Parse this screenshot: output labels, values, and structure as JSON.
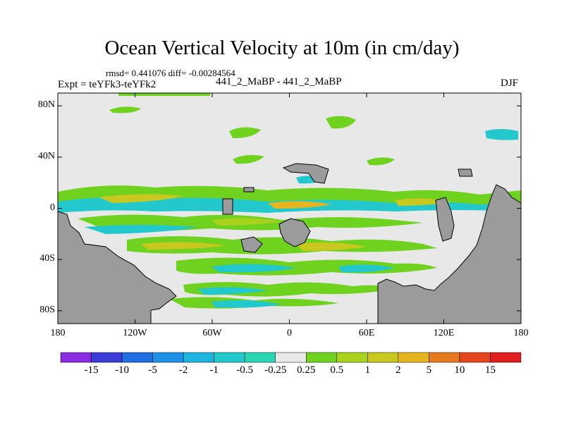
{
  "title": "Ocean Vertical Velocity at 10m (in cm/day)",
  "stats": "rmsd= 0.441076 diff= -0.00284564",
  "experiment_label": "Expt = teYFk3-teYFk2",
  "experiment_name": "441_2_MaBP - 441_2_MaBP",
  "season": "DJF",
  "colors": {
    "land": "#9b9b9b",
    "ocean_background": "#e8e8e8"
  },
  "map": {
    "y_ticks": [
      {
        "label": "80N",
        "lat": 80
      },
      {
        "label": "40N",
        "lat": 40
      },
      {
        "label": "0",
        "lat": 0
      },
      {
        "label": "40S",
        "lat": -40
      },
      {
        "label": "80S",
        "lat": -80
      }
    ],
    "x_ticks": [
      {
        "label": "180",
        "lon": -180
      },
      {
        "label": "120W",
        "lon": -120
      },
      {
        "label": "60W",
        "lon": -60
      },
      {
        "label": "0",
        "lon": 0
      },
      {
        "label": "60E",
        "lon": 60
      },
      {
        "label": "120E",
        "lon": 120
      },
      {
        "label": "180",
        "lon": 180
      }
    ]
  },
  "colorbar": {
    "labels": [
      "-15",
      "-10",
      "-5",
      "-2",
      "-1",
      "-0.5",
      "-0.25",
      "0.25",
      "0.5",
      "1",
      "2",
      "5",
      "10",
      "15"
    ],
    "colors": [
      "#8a2be2",
      "#3b3bd6",
      "#1f6fe0",
      "#1e90e6",
      "#1eb4e0",
      "#22c8cc",
      "#2ad6b4",
      "#e8e8e8",
      "#6fd21e",
      "#a8d21e",
      "#c8c81e",
      "#e6b41e",
      "#e67a1e",
      "#e6461e",
      "#e01e1e"
    ]
  }
}
